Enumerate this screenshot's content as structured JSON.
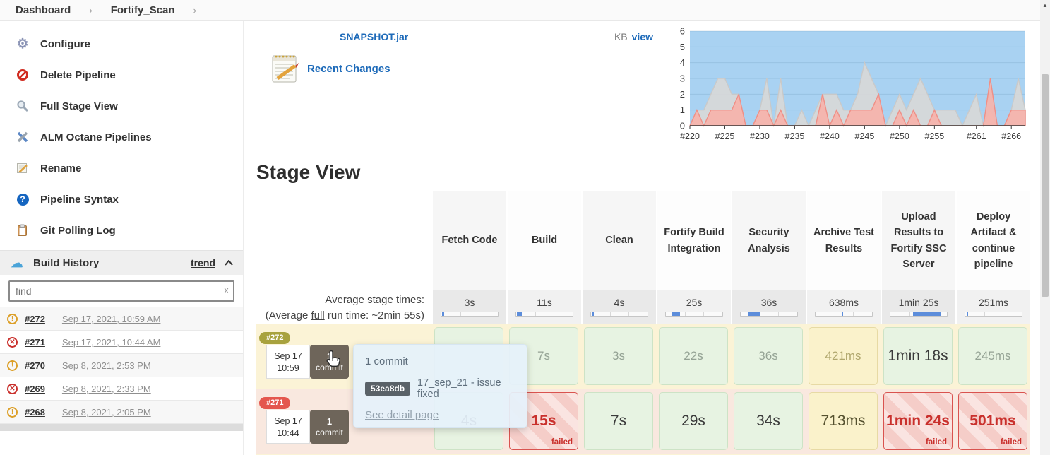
{
  "breadcrumb": {
    "items": [
      "Dashboard",
      "Fortify_Scan"
    ]
  },
  "sidebar": {
    "menu": [
      {
        "label": "Configure",
        "icon": "gear-icon"
      },
      {
        "label": "Delete Pipeline",
        "icon": "no-entry-icon"
      },
      {
        "label": "Full Stage View",
        "icon": "magnifier-icon"
      },
      {
        "label": "ALM Octane Pipelines",
        "icon": "tools-icon"
      },
      {
        "label": "Rename",
        "icon": "rename-icon"
      },
      {
        "label": "Pipeline Syntax",
        "icon": "question-icon"
      },
      {
        "label": "Git Polling Log",
        "icon": "clipboard-icon"
      }
    ],
    "build_history": {
      "title": "Build History",
      "trend_label": "trend"
    },
    "find_placeholder": "find",
    "clear_glyph": "x",
    "builds": [
      {
        "id": "#272",
        "status": "unstable",
        "date": "Sep 17, 2021, 10:59 AM"
      },
      {
        "id": "#271",
        "status": "failed",
        "date": "Sep 17, 2021, 10:44 AM"
      },
      {
        "id": "#270",
        "status": "unstable",
        "date": "Sep 8, 2021, 2:53 PM"
      },
      {
        "id": "#269",
        "status": "failed",
        "date": "Sep 8, 2021, 2:33 PM"
      },
      {
        "id": "#268",
        "status": "unstable",
        "date": "Sep 8, 2021, 2:05 PM"
      }
    ],
    "status_colors": {
      "unstable": "#dc9f27",
      "failed": "#c9302c"
    },
    "status_glyphs": {
      "unstable": "!",
      "failed": "✕"
    }
  },
  "artifacts": {
    "file": "SNAPSHOT.jar",
    "size_unit": "KB",
    "view_label": "view",
    "recent_changes": "Recent Changes"
  },
  "chart_data": {
    "type": "area",
    "title": "",
    "xlabel": "",
    "ylabel": "",
    "ylim": [
      0,
      6
    ],
    "y_ticks": [
      0,
      1,
      2,
      3,
      4,
      5,
      6
    ],
    "x_first_build": 220,
    "x_tick_labels": [
      "#220",
      "#225",
      "#230",
      "#235",
      "#240",
      "#245",
      "#250",
      "#255",
      "#261",
      "#266"
    ],
    "x_tick_indices": [
      0,
      5,
      10,
      15,
      20,
      25,
      30,
      35,
      41,
      46
    ],
    "grid": true,
    "legend": "none",
    "background_color": "#a9d2f2",
    "series": [
      {
        "name": "gray-area",
        "color": "#d8d8d8",
        "stroke": "#c9c9c9",
        "values": [
          0,
          1,
          1,
          2,
          3,
          3,
          2,
          2,
          0,
          0,
          1,
          3,
          0,
          3,
          0,
          0,
          1,
          0,
          1,
          2,
          2,
          2,
          1,
          1,
          2,
          4,
          3,
          2,
          0,
          1,
          2,
          1,
          2,
          3,
          2,
          1,
          1,
          1,
          1,
          0,
          1,
          2,
          0,
          1,
          0,
          0,
          1,
          3,
          1
        ]
      },
      {
        "name": "red-area",
        "color": "#f6b3ab",
        "stroke": "#ef8f86",
        "values": [
          0,
          1,
          0,
          1,
          1,
          1,
          1,
          2,
          0,
          0,
          1,
          1,
          0,
          1,
          0,
          0,
          0,
          0,
          0,
          2,
          0,
          1,
          0,
          1,
          1,
          1,
          1,
          2,
          0,
          0,
          1,
          0,
          1,
          0,
          0,
          1,
          0,
          0,
          0,
          0,
          0,
          0,
          0,
          3,
          0,
          0,
          1,
          1,
          1
        ]
      }
    ]
  },
  "stage_view": {
    "title": "Stage View",
    "avg_label": "Average stage times:",
    "avg_full": {
      "pre": "(Average ",
      "link": "full",
      "post": " run time: ~2min 55s)"
    },
    "failed_label": "failed",
    "bar_color": "#5c8ddb",
    "columns": [
      {
        "name": "Fetch Code",
        "avg": "3s",
        "bar": [
          1,
          4
        ]
      },
      {
        "name": "Build",
        "avg": "11s",
        "bar": [
          1,
          8
        ]
      },
      {
        "name": "Clean",
        "avg": "4s",
        "bar": [
          1,
          3
        ]
      },
      {
        "name": "Fortify Build Integration",
        "avg": "25s",
        "bar": [
          10,
          15
        ]
      },
      {
        "name": "Security Analysis",
        "avg": "36s",
        "bar": [
          13,
          21
        ]
      },
      {
        "name": "Archive Test Results",
        "avg": "638ms",
        "bar": [
          47,
          2
        ]
      },
      {
        "name": "Upload Results to Fortify SSC Server",
        "avg": "1min 25s",
        "bar": [
          40,
          49
        ]
      },
      {
        "name": "Deploy Artifact & continue pipeline",
        "avg": "251ms",
        "bar": [
          2,
          3
        ]
      }
    ],
    "cell_styles": {
      "green": {
        "bg": "#e7f3e2",
        "border": "#cde3c6",
        "text": "#94a294",
        "em_text": "#3a3a3a"
      },
      "yellow": {
        "bg": "#faf2cb",
        "border": "#e7daa4",
        "text": "#b0a76d",
        "em_text": "#55512f"
      },
      "failed": {
        "bg": "#f5cdc8",
        "border": "#d9534f",
        "text": "#c9302c",
        "em_text": "#c9302c"
      }
    },
    "rows": [
      {
        "id": "#272",
        "badge_color": "#a8a23e",
        "row_bg": "#fbf3d6",
        "date": "Sep 17",
        "time": "10:59",
        "commit_count": "1",
        "commit_word": "commit",
        "cells": [
          {
            "v": "",
            "t": "green"
          },
          {
            "v": "7s",
            "t": "green"
          },
          {
            "v": "3s",
            "t": "green"
          },
          {
            "v": "22s",
            "t": "green"
          },
          {
            "v": "36s",
            "t": "green"
          },
          {
            "v": "421ms",
            "t": "yellow"
          },
          {
            "v": "1min 18s",
            "t": "green",
            "em": true
          },
          {
            "v": "245ms",
            "t": "green"
          }
        ]
      },
      {
        "id": "#271",
        "badge_color": "#e4574e",
        "row_bg": "#f9e8df",
        "date": "Sep 17",
        "time": "10:44",
        "commit_count": "1",
        "commit_word": "commit",
        "cells": [
          {
            "v": "4s",
            "t": "green",
            "em": true
          },
          {
            "v": "15s",
            "t": "failed"
          },
          {
            "v": "7s",
            "t": "green",
            "em": true
          },
          {
            "v": "29s",
            "t": "green",
            "em": true
          },
          {
            "v": "34s",
            "t": "green",
            "em": true
          },
          {
            "v": "713ms",
            "t": "yellow",
            "em": true
          },
          {
            "v": "1min 24s",
            "t": "failed"
          },
          {
            "v": "501ms",
            "t": "failed"
          }
        ]
      }
    ]
  },
  "tooltip": {
    "title": "1 commit",
    "hash": "53ea8db",
    "message": "17_sep_21 - issue fixed",
    "link": "See detail page"
  }
}
